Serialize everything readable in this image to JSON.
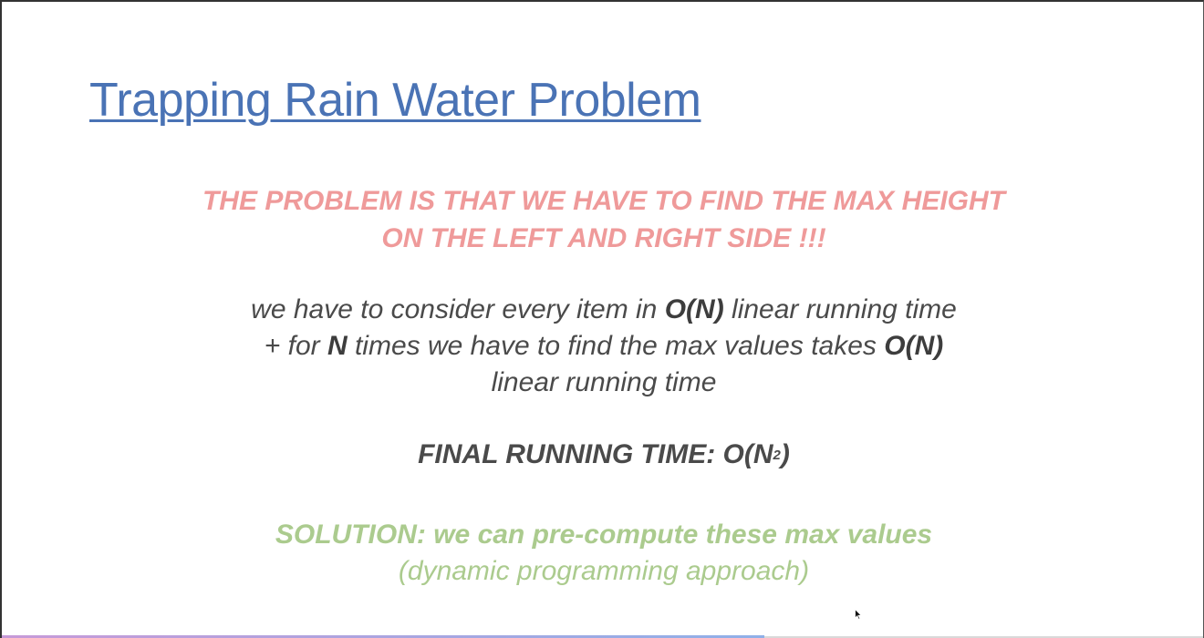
{
  "slide": {
    "title": "Trapping Rain Water Problem",
    "problem": {
      "line1": "THE PROBLEM IS THAT WE HAVE TO FIND THE MAX HEIGHT",
      "line2": "ON THE LEFT AND RIGHT SIDE !!!"
    },
    "explanation": {
      "line1_pre": "we have to consider every item in ",
      "line1_bold": "O(N)",
      "line1_post": " linear running time",
      "line2_pre": "+ for ",
      "line2_bold1": "N",
      "line2_mid": " times we have to find the max values takes ",
      "line2_bold2": "O(N)",
      "line3": "linear running time"
    },
    "final": {
      "prefix": "FINAL RUNNING TIME: O(N",
      "exponent": "2",
      "suffix": ")"
    },
    "solution": {
      "main": "SOLUTION: we can pre-compute these max values",
      "sub": "(dynamic programming approach)"
    }
  },
  "colors": {
    "title": "#4a73b5",
    "problem": "#ef9a9a",
    "body": "#4a4a4a",
    "solution": "#abcb8e"
  },
  "icons": {
    "cursor": "mouse-pointer-icon"
  }
}
